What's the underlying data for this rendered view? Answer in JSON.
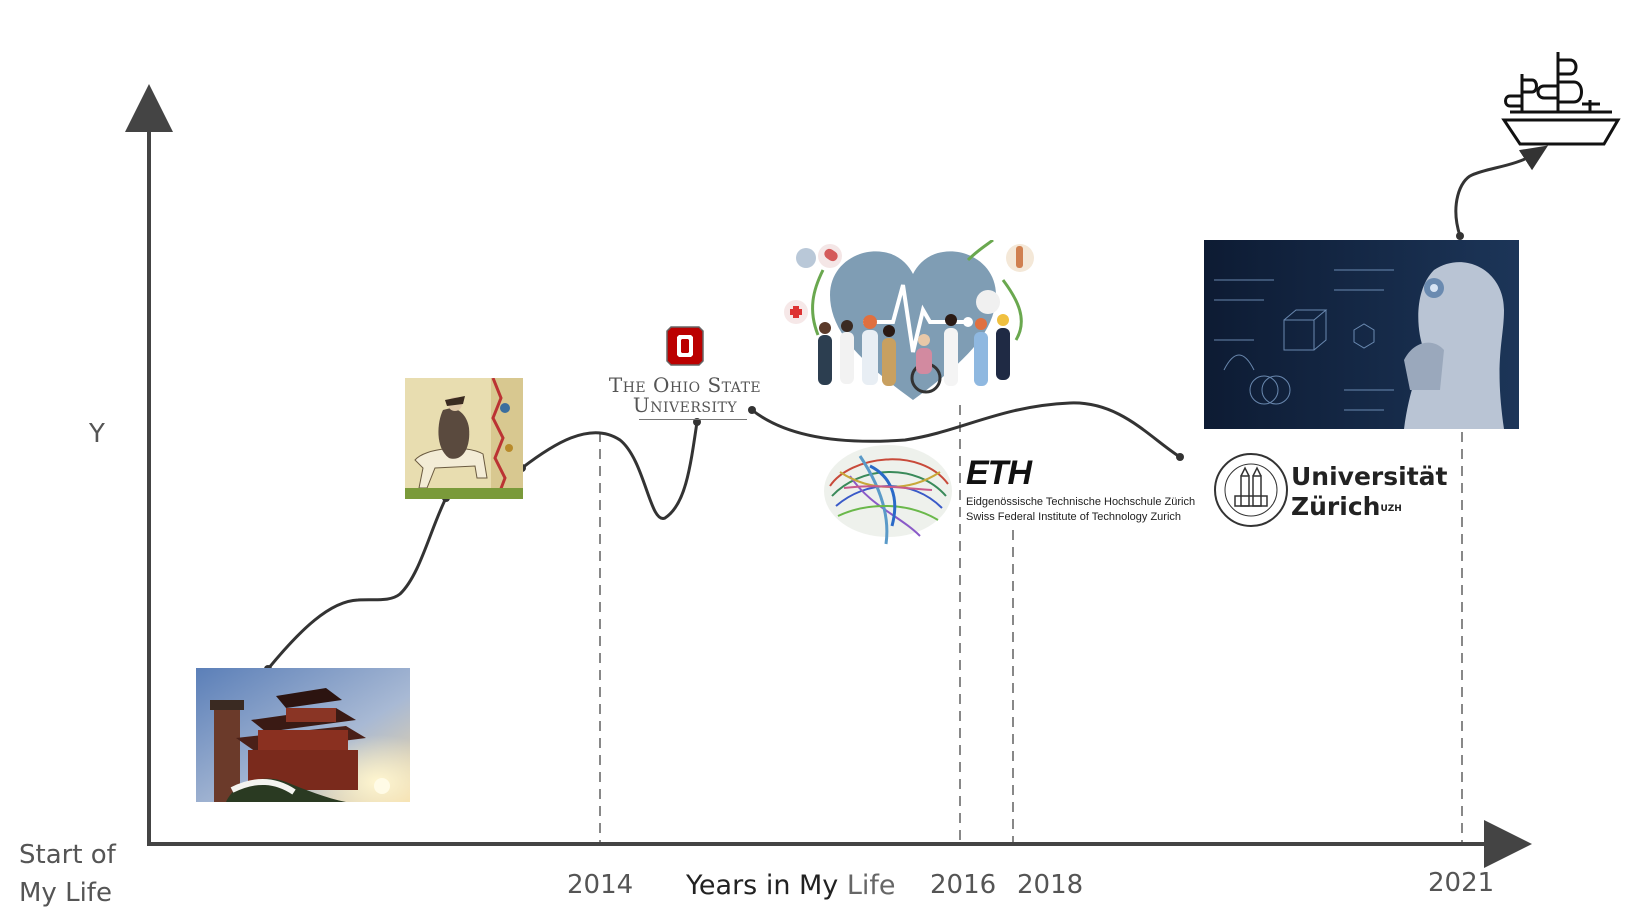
{
  "axes": {
    "y_label": "Y",
    "x_title_main": "Years in My ",
    "x_title_tail": "Life",
    "origin_line1": "Start of",
    "origin_line2": "My Life",
    "ticks": [
      "2014",
      "2016",
      "2018",
      "2021"
    ]
  },
  "milestones": {
    "ohio_state": {
      "line1": "The Ohio State",
      "line2": "University"
    },
    "eth": {
      "short": "ETH",
      "line1": "Eidgenössische Technische Hochschule Zürich",
      "line2": "Swiss Federal Institute of Technology Zurich"
    },
    "uzh": {
      "line1": "Universität",
      "line2": "Zürich",
      "sup": "UZH"
    }
  },
  "colors": {
    "axis": "#444444",
    "curve": "#333333",
    "ohio_red": "#bb0000",
    "heart": "#7f9db4",
    "ai_bg": "#0d1b33"
  }
}
